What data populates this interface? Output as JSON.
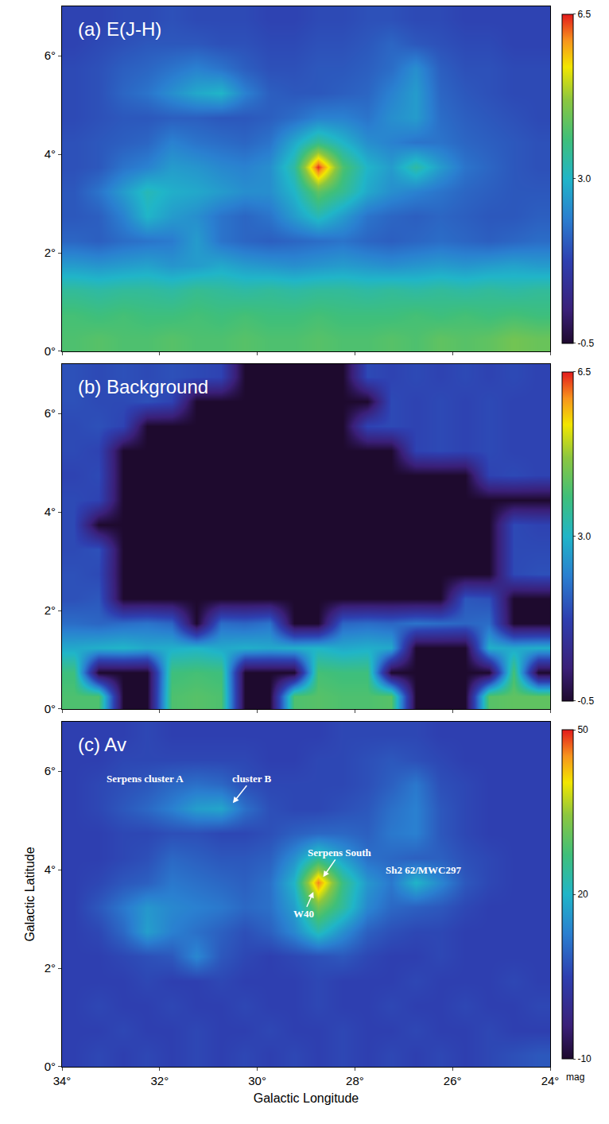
{
  "chart_data": [
    {
      "type": "heatmap",
      "title": "(a) E(J-H)",
      "tick_labels": "y",
      "xlim": [
        34,
        24
      ],
      "ylim": [
        0,
        7
      ],
      "xticks": [
        {
          "value": 34,
          "label": "34°"
        },
        {
          "value": 32,
          "label": "32°"
        },
        {
          "value": 30,
          "label": "30°"
        },
        {
          "value": 28,
          "label": "28°"
        },
        {
          "value": 26,
          "label": "26°"
        },
        {
          "value": 24,
          "label": "24°"
        }
      ],
      "yticks": [
        {
          "value": 0,
          "label": "0°"
        },
        {
          "value": 2,
          "label": "2°"
        },
        {
          "value": 4,
          "label": "4°"
        },
        {
          "value": 6,
          "label": "6°"
        }
      ],
      "colorbar": {
        "range": [
          -0.5,
          6.5
        ],
        "ticks": [
          -0.5,
          {
            "value": 3,
            "label": "3.0"
          },
          6.5
        ]
      },
      "x": [
        33.75,
        33.25,
        32.75,
        32.25,
        31.75,
        31.25,
        30.75,
        30.25,
        29.75,
        29.25,
        28.75,
        28.25,
        27.75,
        27.25,
        26.75,
        26.25,
        25.75,
        25.25,
        24.75,
        24.25
      ],
      "y": [
        0.25,
        0.75,
        1.25,
        1.75,
        2.25,
        2.75,
        3.25,
        3.75,
        4.25,
        4.75,
        5.25,
        5.75,
        6.25,
        6.75
      ],
      "z": [
        [
          4.0,
          4.1,
          4.0,
          4.0,
          4.1,
          4.0,
          4.0,
          4.1,
          4.0,
          4.0,
          4.1,
          4.0,
          4.0,
          4.1,
          4.0,
          4.2,
          4.1,
          4.2,
          4.4,
          4.3
        ],
        [
          3.9,
          3.8,
          3.9,
          3.8,
          3.8,
          3.9,
          3.8,
          3.9,
          3.8,
          3.8,
          3.9,
          3.8,
          3.8,
          3.8,
          3.9,
          3.8,
          3.9,
          3.8,
          3.9,
          3.8
        ],
        [
          3.5,
          3.4,
          3.5,
          3.5,
          3.4,
          3.6,
          3.5,
          3.4,
          3.5,
          3.4,
          3.5,
          3.5,
          3.4,
          3.5,
          3.4,
          3.5,
          3.4,
          3.5,
          3.4,
          3.5
        ],
        [
          2.6,
          2.5,
          2.6,
          2.7,
          2.5,
          2.6,
          2.8,
          2.6,
          2.5,
          2.4,
          2.5,
          2.6,
          2.5,
          2.4,
          2.5,
          2.6,
          2.5,
          2.6,
          2.7,
          2.6
        ],
        [
          1.8,
          1.7,
          1.9,
          2.0,
          2.1,
          2.6,
          2.0,
          1.8,
          1.7,
          1.8,
          1.9,
          2.0,
          1.8,
          1.7,
          1.8,
          1.9,
          1.8,
          1.7,
          1.8,
          1.9
        ],
        [
          1.6,
          1.7,
          2.2,
          3.0,
          2.6,
          2.4,
          2.0,
          1.8,
          2.0,
          2.6,
          3.2,
          2.6,
          2.0,
          1.8,
          1.7,
          1.8,
          1.7,
          1.6,
          1.6,
          1.7
        ],
        [
          1.6,
          2.0,
          2.6,
          3.2,
          2.9,
          2.8,
          2.6,
          2.4,
          2.4,
          3.0,
          4.2,
          3.6,
          2.8,
          2.4,
          2.2,
          2.0,
          1.8,
          1.7,
          1.6,
          1.6
        ],
        [
          1.5,
          1.6,
          2.0,
          2.2,
          2.6,
          2.5,
          2.3,
          2.2,
          2.4,
          3.4,
          6.4,
          4.0,
          3.0,
          2.6,
          3.4,
          2.6,
          2.0,
          1.8,
          1.6,
          1.5
        ],
        [
          1.5,
          1.6,
          1.7,
          1.8,
          2.2,
          2.0,
          1.9,
          1.8,
          2.0,
          2.8,
          3.6,
          3.0,
          2.4,
          2.2,
          2.0,
          2.0,
          1.8,
          1.7,
          1.6,
          1.5
        ],
        [
          1.4,
          1.5,
          1.6,
          1.6,
          1.7,
          1.7,
          1.6,
          1.6,
          1.7,
          1.9,
          2.2,
          2.2,
          2.0,
          2.4,
          2.6,
          1.9,
          1.7,
          1.6,
          1.5,
          1.4
        ],
        [
          1.4,
          1.5,
          1.8,
          2.0,
          2.4,
          2.8,
          3.0,
          2.2,
          1.7,
          1.6,
          1.6,
          1.7,
          1.8,
          2.2,
          2.6,
          1.8,
          1.6,
          1.5,
          1.4,
          1.4
        ],
        [
          1.4,
          1.5,
          1.7,
          1.8,
          2.0,
          2.2,
          2.0,
          1.7,
          1.5,
          1.5,
          1.6,
          1.6,
          1.7,
          1.9,
          2.4,
          1.7,
          1.5,
          1.5,
          1.4,
          1.4
        ],
        [
          1.3,
          1.4,
          1.5,
          1.6,
          1.6,
          1.6,
          1.5,
          1.5,
          1.4,
          1.4,
          1.5,
          1.5,
          1.6,
          1.8,
          1.6,
          1.5,
          1.4,
          1.4,
          1.3,
          1.3
        ],
        [
          1.3,
          1.3,
          1.4,
          1.4,
          1.5,
          1.4,
          1.4,
          1.4,
          1.3,
          1.3,
          1.4,
          1.4,
          1.5,
          1.5,
          1.4,
          1.4,
          1.3,
          1.3,
          1.3,
          1.3
        ]
      ]
    },
    {
      "type": "heatmap",
      "title": "(b) Background",
      "tick_labels": "y",
      "xlim": [
        34,
        24
      ],
      "ylim": [
        0,
        7
      ],
      "xticks": [
        {
          "value": 34,
          "label": "34°"
        },
        {
          "value": 32,
          "label": "32°"
        },
        {
          "value": 30,
          "label": "30°"
        },
        {
          "value": 28,
          "label": "28°"
        },
        {
          "value": 26,
          "label": "26°"
        },
        {
          "value": 24,
          "label": "24°"
        }
      ],
      "yticks": [
        {
          "value": 0,
          "label": "0°"
        },
        {
          "value": 2,
          "label": "2°"
        },
        {
          "value": 4,
          "label": "4°"
        },
        {
          "value": 6,
          "label": "6°"
        }
      ],
      "colorbar": {
        "range": [
          -0.5,
          6.5
        ],
        "ticks": [
          -0.5,
          {
            "value": 3,
            "label": "3.0"
          },
          6.5
        ]
      },
      "x": [
        33.75,
        33.25,
        32.75,
        32.25,
        31.75,
        31.25,
        30.75,
        30.25,
        29.75,
        29.25,
        28.75,
        28.25,
        27.75,
        27.25,
        26.75,
        26.25,
        25.75,
        25.25,
        24.75,
        24.25
      ],
      "y": [
        0.25,
        0.75,
        1.25,
        1.75,
        2.25,
        2.75,
        3.25,
        3.75,
        4.25,
        4.75,
        5.25,
        5.75,
        6.25,
        6.75
      ],
      "z": [
        [
          4.0,
          4.0,
          -0.5,
          -0.5,
          4.0,
          4.1,
          4.0,
          -0.5,
          -0.5,
          4.0,
          4.1,
          4.0,
          4.0,
          4.1,
          -0.5,
          -0.5,
          -0.5,
          4.1,
          4.2,
          4.2
        ],
        [
          3.8,
          -0.5,
          -0.5,
          -0.5,
          3.8,
          3.9,
          3.8,
          -0.5,
          -0.5,
          -0.5,
          3.9,
          3.8,
          3.8,
          -0.5,
          -0.5,
          -0.5,
          -0.5,
          -0.5,
          3.9,
          -0.5
        ],
        [
          2.8,
          2.9,
          3.0,
          2.8,
          2.9,
          3.0,
          2.8,
          2.9,
          2.8,
          2.9,
          3.0,
          2.8,
          2.9,
          2.8,
          -0.5,
          -0.5,
          -0.5,
          2.9,
          2.8,
          2.9
        ],
        [
          1.9,
          1.8,
          1.9,
          2.0,
          1.8,
          -0.5,
          1.9,
          1.8,
          2.0,
          -0.5,
          -0.5,
          1.8,
          1.9,
          1.8,
          2.0,
          1.9,
          1.8,
          1.9,
          -0.5,
          -0.5
        ],
        [
          1.5,
          1.6,
          -0.5,
          -0.5,
          -0.5,
          -0.5,
          -0.5,
          -0.5,
          -0.5,
          -0.5,
          -0.5,
          -0.5,
          -0.5,
          -0.5,
          -0.5,
          -0.5,
          1.6,
          1.5,
          -0.5,
          -0.5
        ],
        [
          1.5,
          1.4,
          -0.5,
          -0.5,
          -0.5,
          -0.5,
          -0.5,
          -0.5,
          -0.5,
          -0.5,
          -0.5,
          -0.5,
          -0.5,
          -0.5,
          -0.5,
          -0.5,
          -0.5,
          -0.5,
          1.4,
          1.5
        ],
        [
          1.4,
          1.5,
          -0.5,
          -0.5,
          -0.5,
          -0.5,
          -0.5,
          -0.5,
          -0.5,
          -0.5,
          -0.5,
          -0.5,
          -0.5,
          -0.5,
          -0.5,
          -0.5,
          -0.5,
          -0.5,
          1.4,
          1.4
        ],
        [
          1.4,
          -0.5,
          -0.5,
          -0.5,
          -0.5,
          -0.5,
          -0.5,
          -0.5,
          -0.5,
          -0.5,
          -0.5,
          -0.5,
          -0.5,
          -0.5,
          -0.5,
          -0.5,
          -0.5,
          -0.5,
          1.4,
          1.3
        ],
        [
          1.4,
          1.3,
          -0.5,
          -0.5,
          -0.5,
          -0.5,
          -0.5,
          -0.5,
          -0.5,
          -0.5,
          -0.5,
          -0.5,
          -0.5,
          -0.5,
          -0.5,
          -0.5,
          -0.5,
          -0.5,
          -0.5,
          -0.5
        ],
        [
          1.3,
          1.4,
          -0.5,
          -0.5,
          -0.5,
          -0.5,
          -0.5,
          -0.5,
          -0.5,
          -0.5,
          -0.5,
          -0.5,
          -0.5,
          -0.5,
          -0.5,
          -0.5,
          -0.5,
          1.3,
          1.4,
          1.3
        ],
        [
          1.4,
          1.3,
          -0.5,
          -0.5,
          -0.5,
          -0.5,
          -0.5,
          -0.5,
          -0.5,
          -0.5,
          -0.5,
          -0.5,
          -0.5,
          -0.5,
          1.3,
          1.4,
          1.3,
          1.4,
          1.3,
          1.3
        ],
        [
          1.4,
          1.5,
          1.3,
          -0.5,
          -0.5,
          -0.5,
          -0.5,
          -0.5,
          -0.5,
          -0.5,
          -0.5,
          -0.5,
          1.3,
          1.4,
          1.3,
          1.4,
          1.3,
          1.4,
          1.3,
          1.3
        ],
        [
          1.5,
          1.4,
          1.4,
          1.5,
          1.3,
          -0.5,
          -0.5,
          -0.5,
          -0.5,
          -0.5,
          -0.5,
          -0.5,
          -0.5,
          1.4,
          1.3,
          1.4,
          1.3,
          1.4,
          1.3,
          1.3
        ],
        [
          1.5,
          1.4,
          1.5,
          1.4,
          1.5,
          1.4,
          1.3,
          -0.5,
          -0.5,
          -0.5,
          -0.5,
          -0.5,
          1.4,
          1.3,
          1.4,
          1.3,
          1.4,
          1.3,
          1.4,
          1.3
        ]
      ]
    },
    {
      "type": "heatmap",
      "title": "(c) Av",
      "x_label": "Galactic Longitude",
      "y_label": "Galactic Latitude",
      "xlim": [
        34,
        24
      ],
      "ylim": [
        0,
        7
      ],
      "xticks": [
        {
          "value": 34,
          "label": "34°"
        },
        {
          "value": 32,
          "label": "32°"
        },
        {
          "value": 30,
          "label": "30°"
        },
        {
          "value": 28,
          "label": "28°"
        },
        {
          "value": 26,
          "label": "26°"
        },
        {
          "value": 24,
          "label": "24°"
        }
      ],
      "yticks": [
        {
          "value": 0,
          "label": "0°"
        },
        {
          "value": 2,
          "label": "2°"
        },
        {
          "value": 4,
          "label": "4°"
        },
        {
          "value": 6,
          "label": "6°"
        }
      ],
      "colorbar": {
        "range": [
          -10,
          50
        ],
        "ticks": [
          -10,
          20,
          50
        ],
        "label": "mag"
      },
      "annotations": [
        {
          "text": "Serpens cluster A",
          "text_x": 32.3,
          "text_y": 5.85
        },
        {
          "text": "cluster B",
          "text_x": 30.1,
          "text_y": 5.85,
          "x": 30.5,
          "y": 5.35
        },
        {
          "text": "Serpens South",
          "text_x": 28.3,
          "text_y": 4.35,
          "x": 28.65,
          "y": 3.85
        },
        {
          "text": "Sh2 62/MWC297",
          "text_x": 26.6,
          "text_y": 4.0
        },
        {
          "text": "W40",
          "text_x": 29.05,
          "text_y": 3.1,
          "x": 28.85,
          "y": 3.55
        }
      ],
      "x": [
        33.75,
        33.25,
        32.75,
        32.25,
        31.75,
        31.25,
        30.75,
        30.25,
        29.75,
        29.25,
        28.75,
        28.25,
        27.75,
        27.25,
        26.75,
        26.25,
        25.75,
        25.25,
        24.75,
        24.25
      ],
      "y": [
        0.25,
        0.75,
        1.25,
        1.75,
        2.25,
        2.75,
        3.25,
        3.75,
        4.25,
        4.75,
        5.25,
        5.75,
        6.25,
        6.75
      ],
      "z": [
        [
          5,
          6,
          5,
          6,
          5,
          6,
          5,
          6,
          5,
          6,
          5,
          6,
          5,
          6,
          5,
          6,
          5,
          6,
          7,
          8
        ],
        [
          5,
          5,
          6,
          5,
          5,
          6,
          5,
          5,
          6,
          5,
          5,
          6,
          5,
          5,
          6,
          5,
          5,
          6,
          5,
          5
        ],
        [
          5,
          6,
          5,
          5,
          6,
          5,
          5,
          6,
          5,
          5,
          6,
          5,
          5,
          6,
          5,
          5,
          6,
          5,
          5,
          6
        ],
        [
          5,
          5,
          5,
          6,
          5,
          5,
          6,
          5,
          5,
          5,
          6,
          5,
          5,
          5,
          6,
          5,
          5,
          5,
          6,
          5
        ],
        [
          5,
          5,
          6,
          7,
          8,
          14,
          8,
          6,
          5,
          6,
          7,
          8,
          6,
          5,
          5,
          6,
          5,
          5,
          5,
          5
        ],
        [
          5,
          6,
          10,
          17,
          13,
          11,
          9,
          7,
          9,
          14,
          22,
          15,
          9,
          7,
          6,
          6,
          5,
          5,
          5,
          5
        ],
        [
          5,
          8,
          12,
          16,
          14,
          13,
          12,
          10,
          11,
          17,
          32,
          24,
          14,
          10,
          9,
          8,
          6,
          5,
          5,
          5
        ],
        [
          5,
          6,
          8,
          9,
          12,
          11,
          10,
          9,
          11,
          20,
          46,
          26,
          16,
          12,
          20,
          14,
          8,
          6,
          5,
          5
        ],
        [
          5,
          5,
          6,
          7,
          10,
          9,
          8,
          8,
          9,
          15,
          24,
          17,
          11,
          10,
          9,
          9,
          7,
          6,
          5,
          5
        ],
        [
          5,
          5,
          6,
          6,
          7,
          7,
          6,
          6,
          7,
          9,
          10,
          10,
          9,
          12,
          13,
          8,
          6,
          5,
          5,
          5
        ],
        [
          5,
          6,
          8,
          10,
          13,
          17,
          18,
          11,
          7,
          6,
          6,
          7,
          8,
          11,
          13,
          8,
          6,
          5,
          5,
          5
        ],
        [
          5,
          6,
          7,
          8,
          10,
          11,
          10,
          7,
          6,
          6,
          6,
          6,
          7,
          9,
          12,
          7,
          6,
          5,
          5,
          5
        ],
        [
          5,
          5,
          6,
          6,
          6,
          6,
          6,
          6,
          5,
          5,
          6,
          6,
          7,
          8,
          7,
          6,
          5,
          5,
          5,
          5
        ],
        [
          5,
          5,
          5,
          6,
          5,
          5,
          5,
          5,
          5,
          5,
          5,
          6,
          6,
          6,
          6,
          5,
          5,
          5,
          5,
          5
        ]
      ]
    }
  ]
}
